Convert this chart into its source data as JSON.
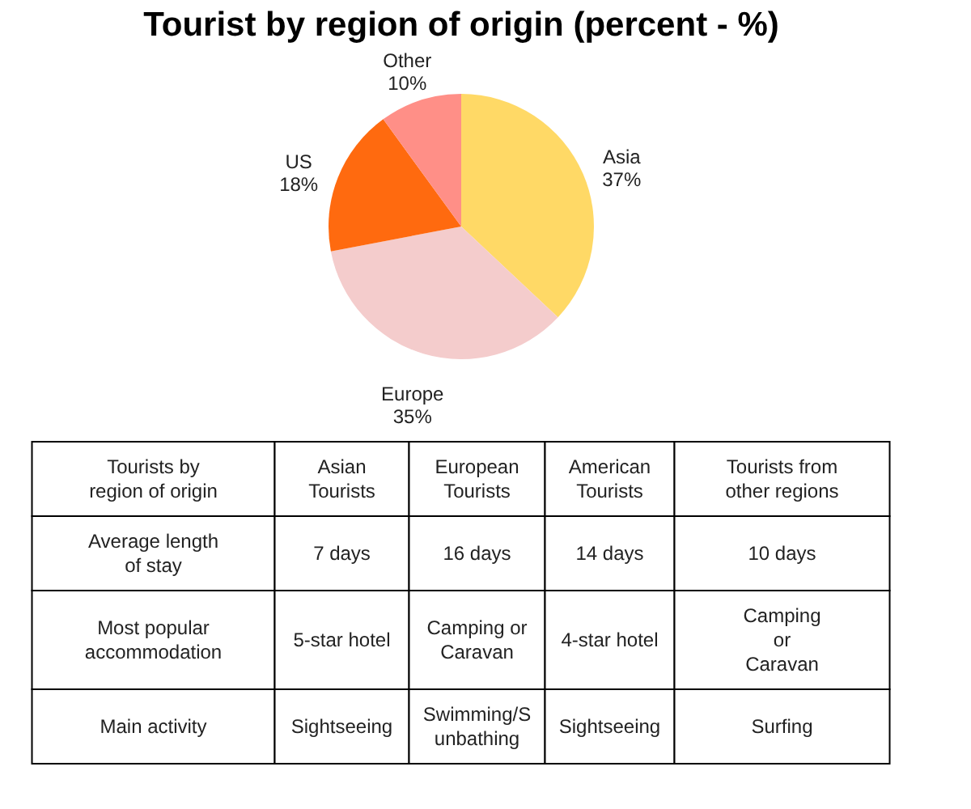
{
  "chart_data": [
    {
      "type": "pie",
      "title": "Tourist by region of origin (percent - %)",
      "categories": [
        "Asia",
        "Europe",
        "US",
        "Other"
      ],
      "values": [
        37,
        35,
        18,
        10
      ],
      "value_labels": [
        "37%",
        "35%",
        "18%",
        "10%"
      ],
      "colors": [
        "#ffd966",
        "#f4cccc",
        "#ff6a0f",
        "#ff8f87"
      ],
      "legend": false
    },
    {
      "type": "other",
      "categories": [
        "Tourists by\nregion of origin",
        "Asian\nTourists",
        "European\nTourists",
        "American\nTourists",
        "Tourists from\nother regions"
      ],
      "annotations": [
        "Average length\nof stay",
        "7 days",
        "16 days",
        "14 days",
        "10 days",
        "Most popular\naccommodation",
        "5-star hotel",
        "Camping or\nCaravan",
        "4-star hotel",
        "Camping\nor\nCaravan",
        "Main activity",
        "Sightseeing",
        "Swimming/S\nunbathing",
        "Sightseeing",
        "Surfing"
      ]
    }
  ]
}
